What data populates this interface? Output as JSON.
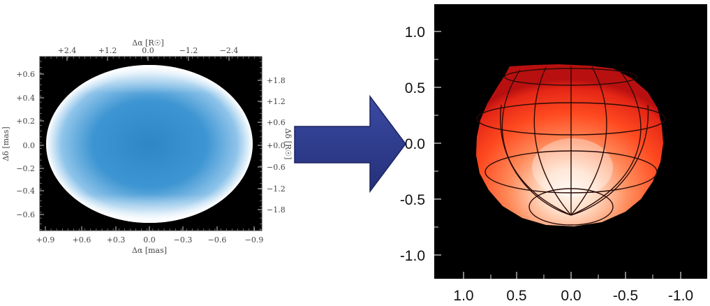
{
  "left_panel": {
    "top_axis_title": "Δα  [R☉]",
    "top_ticks": [
      "+2.4",
      "+1.2",
      "0.0",
      "−1.2",
      "−2.4"
    ],
    "bottom_axis_title": "Δα  [mas]",
    "bottom_ticks": [
      "+0.9",
      "+0.6",
      "+0.3",
      "0.0",
      "−0.3",
      "−0.6",
      "−0.9"
    ],
    "left_axis_title": "Δδ  [mas]",
    "left_ticks": [
      "+0.6",
      "+0.4",
      "+0.2",
      "0.0",
      "−0.2",
      "−0.4",
      "−0.6"
    ],
    "right_axis_title": "Δδ  [R☉]",
    "right_ticks": [
      "+1.8",
      "+1.2",
      "+0.6",
      "+0.0",
      "−0.6",
      "−1.2",
      "−1.8"
    ],
    "colors": {
      "disk_center": "#2f86c6",
      "disk_edge": "#ffffff",
      "background": "#000000"
    }
  },
  "arrow": {
    "color": "#2e3a8c"
  },
  "right_panel": {
    "y_ticks": [
      "1.0",
      "0.5",
      "0.0",
      "-0.5",
      "-1.0"
    ],
    "x_ticks": [
      "1.0",
      "0.5",
      "0.0",
      "-0.5",
      "-1.0"
    ],
    "colors": {
      "hot": "#fff2e6",
      "mid": "#ff4a1c",
      "edge": "#c81414",
      "background": "#000000"
    }
  }
}
